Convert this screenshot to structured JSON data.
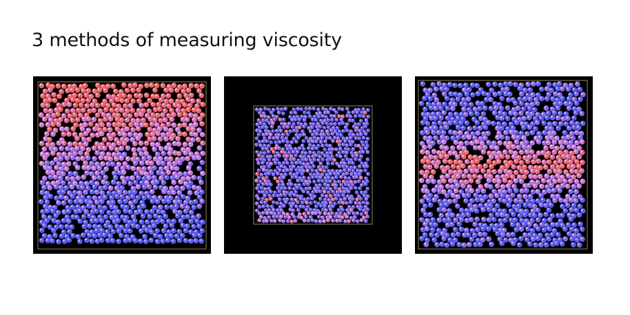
{
  "slide": {
    "title": "3 methods of measuring viscosity"
  },
  "panels": [
    {
      "id": "panel-1",
      "name": "simulation-snapshot-1",
      "gradient": "top-red-to-bottom-blue",
      "seed": 11
    },
    {
      "id": "panel-2",
      "name": "simulation-snapshot-2",
      "gradient": "mostly-blue",
      "seed": 23
    },
    {
      "id": "panel-3",
      "name": "simulation-snapshot-3",
      "gradient": "red-band-center",
      "seed": 37
    }
  ],
  "colors": {
    "background": "#000000",
    "box_outline": "#b8a86a",
    "hot": "#e8636b",
    "cold": "#5a5ae8",
    "mid": "#c27ae0"
  }
}
